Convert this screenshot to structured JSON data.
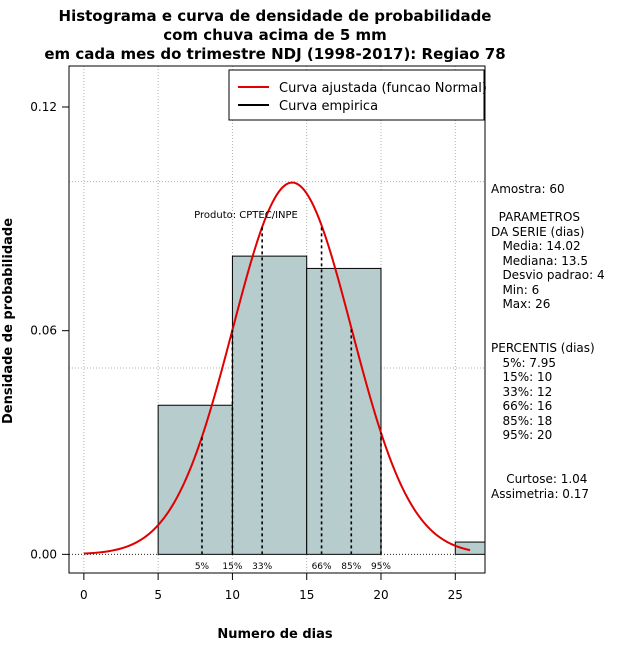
{
  "chart_data": {
    "type": "histogram",
    "title_lines": [
      "Histograma e curva de densidade de probabilidade",
      "com chuva acima de 5 mm",
      "em cada mes do trimestre NDJ (1998-2017): Regiao 78"
    ],
    "xlabel": "Numero de dias",
    "ylabel": "Densidade de probabilidade",
    "xlim": [
      -1,
      27
    ],
    "ylim": [
      -0.005,
      0.131
    ],
    "x_ticks": [
      0,
      5,
      10,
      15,
      20,
      25
    ],
    "y_ticks": [
      0.0,
      0.06,
      0.12
    ],
    "y_tick_labels": [
      "0.00",
      "0.06",
      "0.12"
    ],
    "grid_x": [
      0,
      5,
      10,
      15,
      20,
      25
    ],
    "grid_y": [
      0,
      0.05,
      0.1
    ],
    "bins": [
      {
        "start": 5,
        "end": 10,
        "density": 0.04
      },
      {
        "start": 10,
        "end": 15,
        "density": 0.08
      },
      {
        "start": 15,
        "end": 20,
        "density": 0.0767
      },
      {
        "start": 25,
        "end": 27,
        "density": 0.0033
      }
    ],
    "bar_color": "#b7cccc",
    "curve_color": "#e00000",
    "normal_fit": {
      "mean": 14.02,
      "sd": 4,
      "x_from": 0,
      "x_to": 26
    },
    "percentile_lines": [
      {
        "label": "5%",
        "x": 7.95
      },
      {
        "label": "15%",
        "x": 10
      },
      {
        "label": "33%",
        "x": 12
      },
      {
        "label": "66%",
        "x": 16
      },
      {
        "label": "85%",
        "x": 18
      },
      {
        "label": "95%",
        "x": 20
      }
    ],
    "legend": {
      "position": "top-right",
      "entries": [
        {
          "label": "Curva ajustada (funcao Normal)",
          "color": "#e00000"
        },
        {
          "label": "Curva empirica",
          "color": "#000000"
        }
      ]
    },
    "annotation": "Produto: CPTEC/INPE"
  },
  "side_panel": {
    "amostra": "Amostra: 60",
    "parametros": "  PARAMETROS\nDA SERIE (dias)\n   Media: 14.02\n   Mediana: 13.5\n   Desvio padrao: 4\n   Min: 6\n   Max: 26",
    "percentis": "PERCENTIS (dias)\n   5%: 7.95\n   15%: 10\n   33%: 12\n   66%: 16\n   85%: 18\n   95%: 20",
    "estatisticas": "    Curtose: 1.04\nAssimetria: 0.17"
  }
}
